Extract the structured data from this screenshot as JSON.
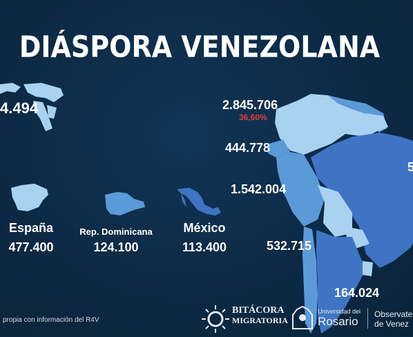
{
  "title": "DIÁSPORA VENEZOLANA",
  "world": {
    "value": "4.494"
  },
  "south_america": {
    "colombia": {
      "value": "2.845.706",
      "share": "36,60%"
    },
    "ecuador": {
      "value": "444.778"
    },
    "peru": {
      "value": "1.542.004"
    },
    "chile": {
      "value": "532.715"
    },
    "argentina": {
      "value": "164.024"
    },
    "brazil_partial": {
      "value": "5"
    }
  },
  "countries": [
    {
      "name": "España",
      "value": "477.400"
    },
    {
      "name": "Rep. Dominicana",
      "value": "124.100"
    },
    {
      "name": "México",
      "value": "113.400"
    }
  ],
  "footer": {
    "source": "propia con información del R4V",
    "logo1_line1": "BITÁCORA",
    "logo1_line2": "MIGRATORIA",
    "logo2_line1": "Universidad del",
    "logo2_line2": "Rosario",
    "logo3_line1": "Observate",
    "logo3_line2": "de Venez"
  },
  "colors": {
    "background": "#0c2a45",
    "map_light": "#a9d2f0",
    "map_mid": "#5b9ad8",
    "map_dark": "#3f74c4",
    "highlight": "#e23b3b"
  }
}
